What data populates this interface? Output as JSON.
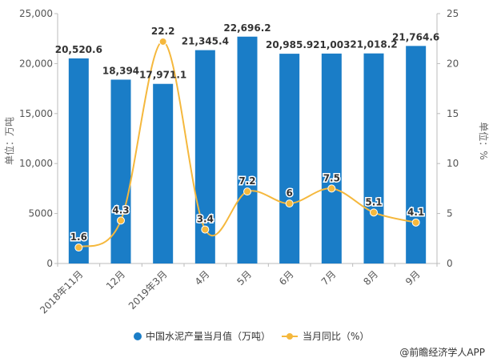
{
  "chart_data": {
    "type": "bar",
    "categories": [
      "2018年11月",
      "12月",
      "2019年3月",
      "4月",
      "5月",
      "6月",
      "7月",
      "8月",
      "9月"
    ],
    "series": [
      {
        "name": "中国水泥产量当月值（万吨）",
        "type": "bar",
        "axis": "left",
        "values": [
          20520.6,
          18394,
          17971.1,
          21345.4,
          22696.2,
          20985.9,
          21003,
          21018.2,
          21764.6
        ],
        "labels": [
          "20,520.6",
          "18,394",
          "17,971.1",
          "21,345.4",
          "22,696.2",
          "20,985.9",
          "21,003",
          "21,018.2",
          "21,764.6"
        ]
      },
      {
        "name": "当月同比（%）",
        "type": "line",
        "axis": "right",
        "values": [
          1.6,
          4.3,
          22.2,
          3.4,
          7.2,
          6,
          7.5,
          5.1,
          4.1
        ],
        "labels": [
          "1.6",
          "4.3",
          "22.2",
          "3.4",
          "7.2",
          "6",
          "7.5",
          "5.1",
          "4.1"
        ]
      }
    ],
    "y_left": {
      "label": "单位：万吨",
      "ylim": [
        0,
        25000
      ],
      "ticks": [
        0,
        5000,
        10000,
        15000,
        20000,
        25000
      ],
      "tick_labels": [
        "0",
        "5000",
        "10,000",
        "15,000",
        "20,000",
        "25,000"
      ]
    },
    "y_right": {
      "label": "单位：%",
      "ylim": [
        0,
        25
      ],
      "ticks": [
        0,
        5,
        10,
        15,
        20,
        25
      ],
      "tick_labels": [
        "0",
        "5",
        "10",
        "15",
        "20",
        "25"
      ]
    },
    "grid": false,
    "legend": "bottom-center",
    "colors": {
      "bar": "#1a7dc7",
      "line": "#f5b83d",
      "marker": "#f5b83d"
    }
  },
  "source": "@前瞻经济学人APP"
}
